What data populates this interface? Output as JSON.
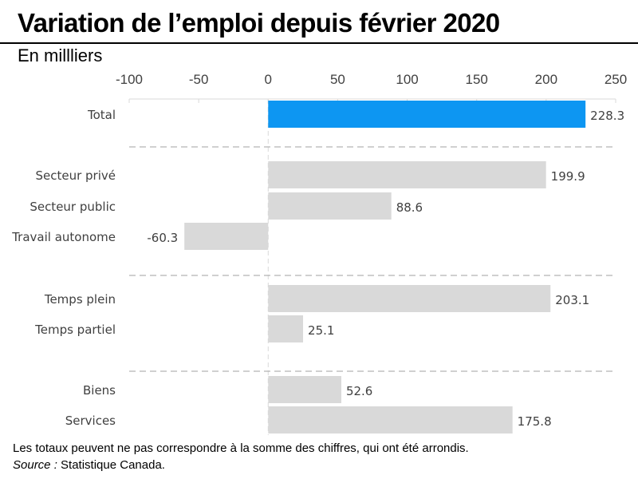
{
  "header": {
    "title": "Variation de l’emploi depuis février 2020",
    "subtitle": "En millliers"
  },
  "footer": {
    "note": "Les totaux peuvent ne pas correspondre à la somme des chiffres, qui ont été arrondis.",
    "source_label": "Source :",
    "source_text": " Statistique Canada."
  },
  "chart_data": {
    "type": "bar",
    "orientation": "horizontal",
    "categories": [
      "Total",
      "Secteur privé",
      "Secteur public",
      "Travail autonome",
      "Temps plein",
      "Temps partiel",
      "Biens",
      "Services"
    ],
    "values": [
      228.3,
      199.9,
      88.6,
      -60.3,
      203.1,
      25.1,
      52.6,
      175.8
    ],
    "data_labels": [
      "228.3",
      "199.9",
      "88.6",
      "-60.3",
      "203.1",
      "25.1",
      "52.6",
      "175.8"
    ],
    "groups": [
      [
        0
      ],
      [
        1,
        2,
        3
      ],
      [
        4,
        5
      ],
      [
        6,
        7
      ]
    ],
    "highlight_index": 0,
    "xlim": [
      -100,
      250
    ],
    "xticks": [
      -100,
      -50,
      0,
      50,
      100,
      150,
      200,
      250
    ],
    "xtick_labels": [
      "-100",
      "-50",
      "0",
      "50",
      "100",
      "150",
      "200",
      "250"
    ],
    "axis_position": "top",
    "grid": false,
    "colors": {
      "highlight": "#0d96f2",
      "default": "#d9d9d9",
      "separator": "#b3b3b3",
      "axis": "#d9d9d9"
    }
  }
}
